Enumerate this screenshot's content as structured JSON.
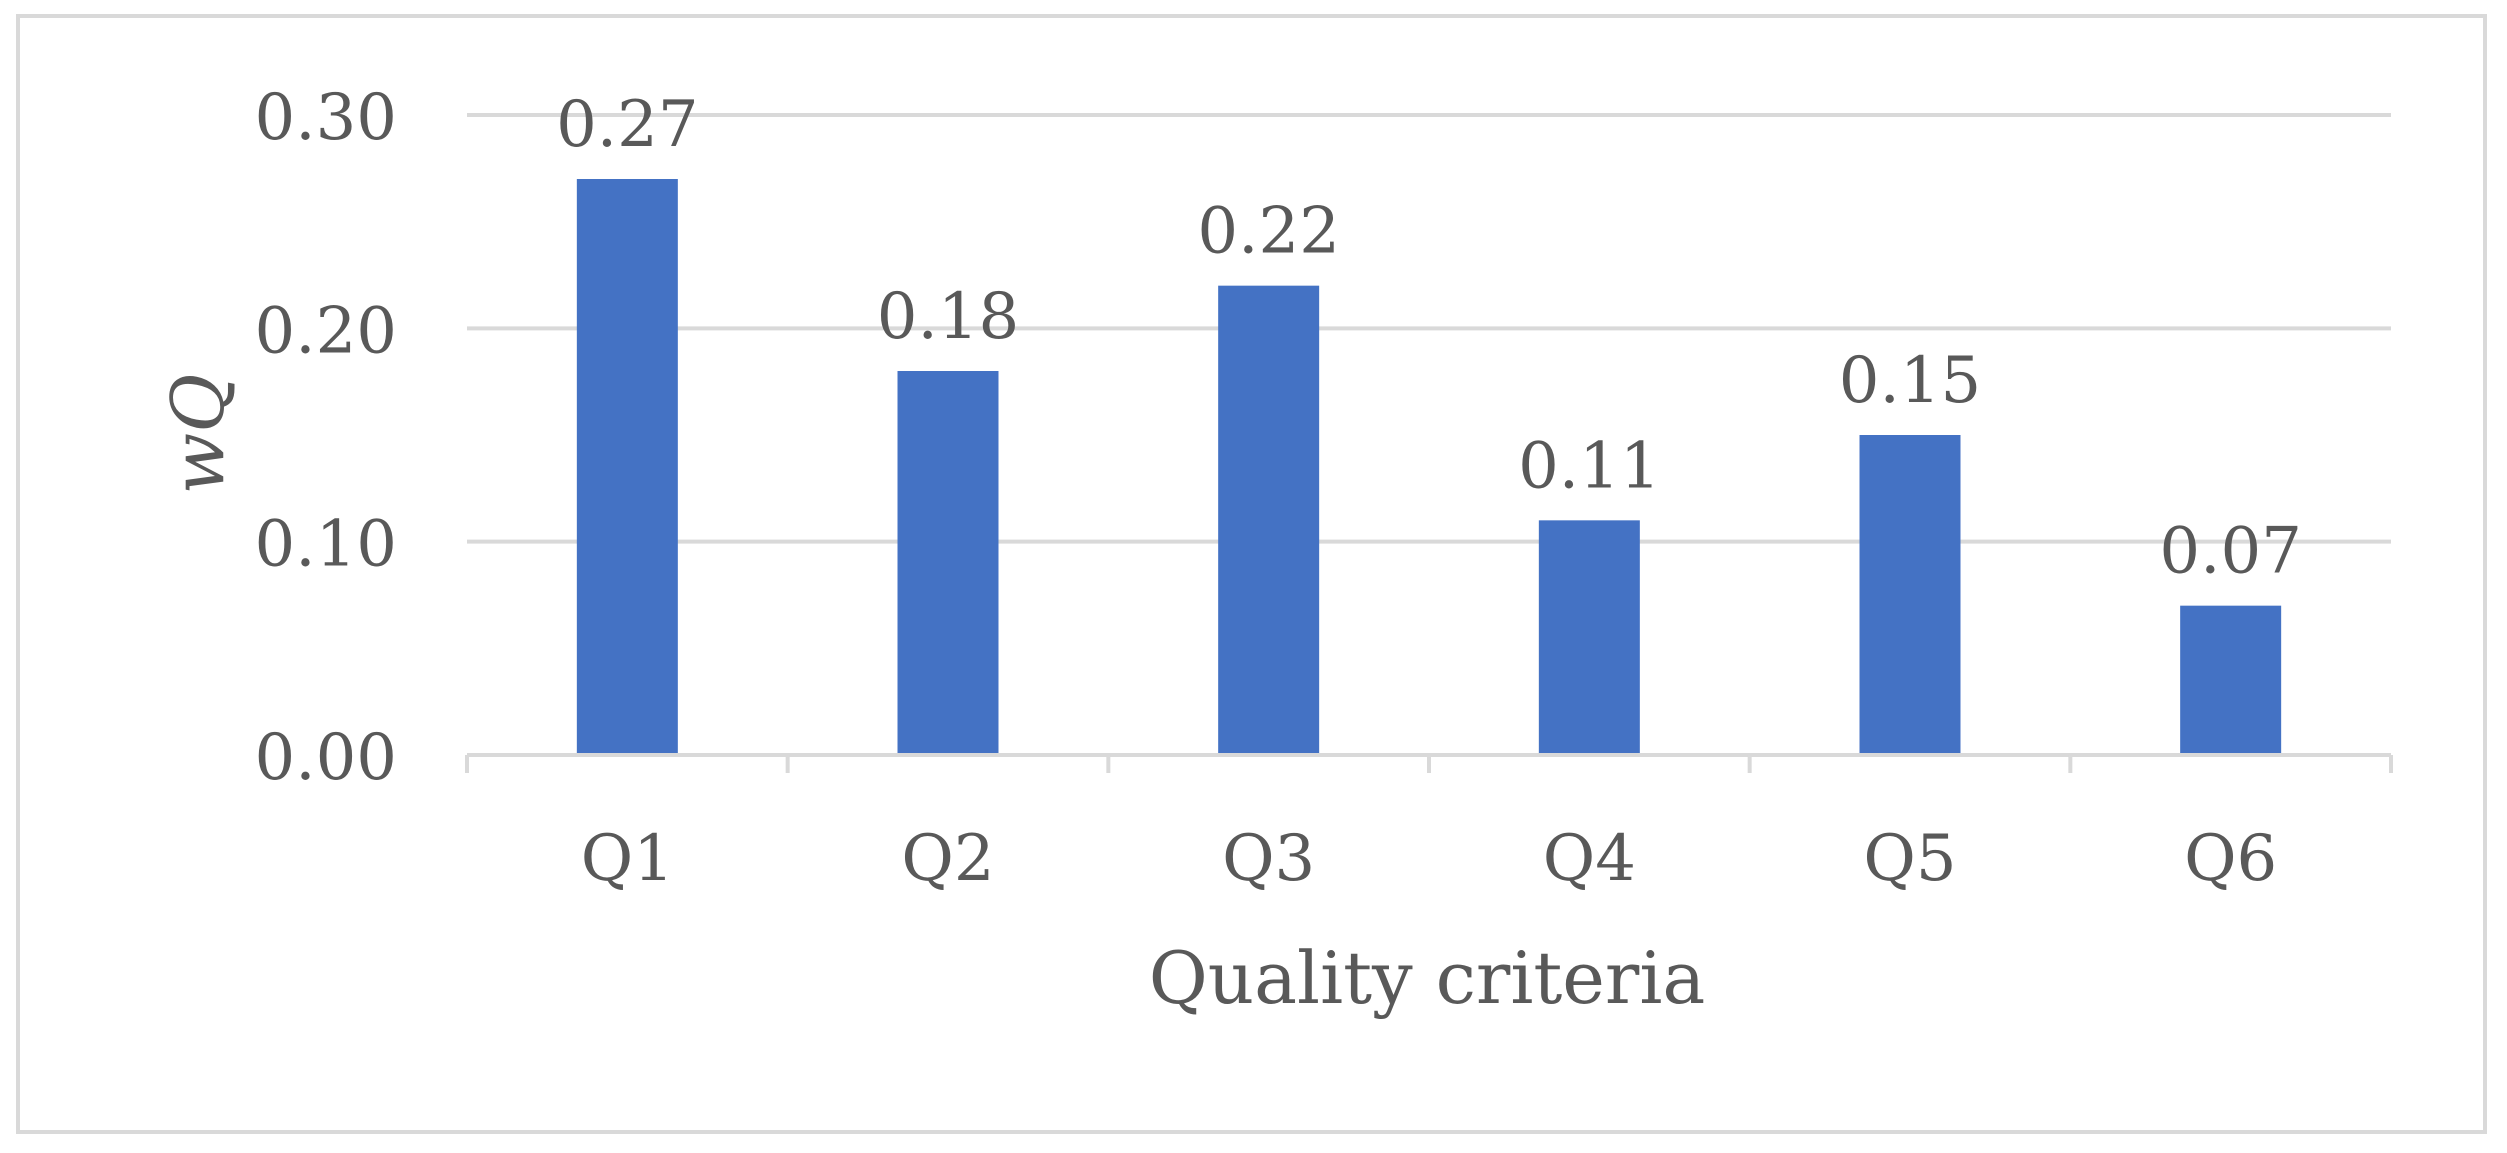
{
  "chart_data": {
    "type": "bar",
    "title": "",
    "categories": [
      "Q1",
      "Q2",
      "Q3",
      "Q4",
      "Q5",
      "Q6"
    ],
    "series": [
      {
        "values": [
          0.27,
          0.18,
          0.22,
          0.11,
          0.15,
          0.07
        ]
      }
    ],
    "data_labels": [
      "0.27",
      "0.18",
      "0.22",
      "0.11",
      "0.15",
      "0.07"
    ],
    "xlabel": "Quality criteria",
    "ylabel": "wQ",
    "ylim": [
      0,
      0.3
    ],
    "yticks": [
      0.0,
      0.1,
      0.2,
      0.3
    ],
    "ytick_labels": [
      "0.00",
      "0.10",
      "0.20",
      "0.30"
    ],
    "grid": true,
    "legend": "none",
    "colors": {
      "bar": "#4472c4",
      "grid": "#d9d9d9",
      "text": "#595959",
      "frame": "#d9d9d9"
    }
  }
}
